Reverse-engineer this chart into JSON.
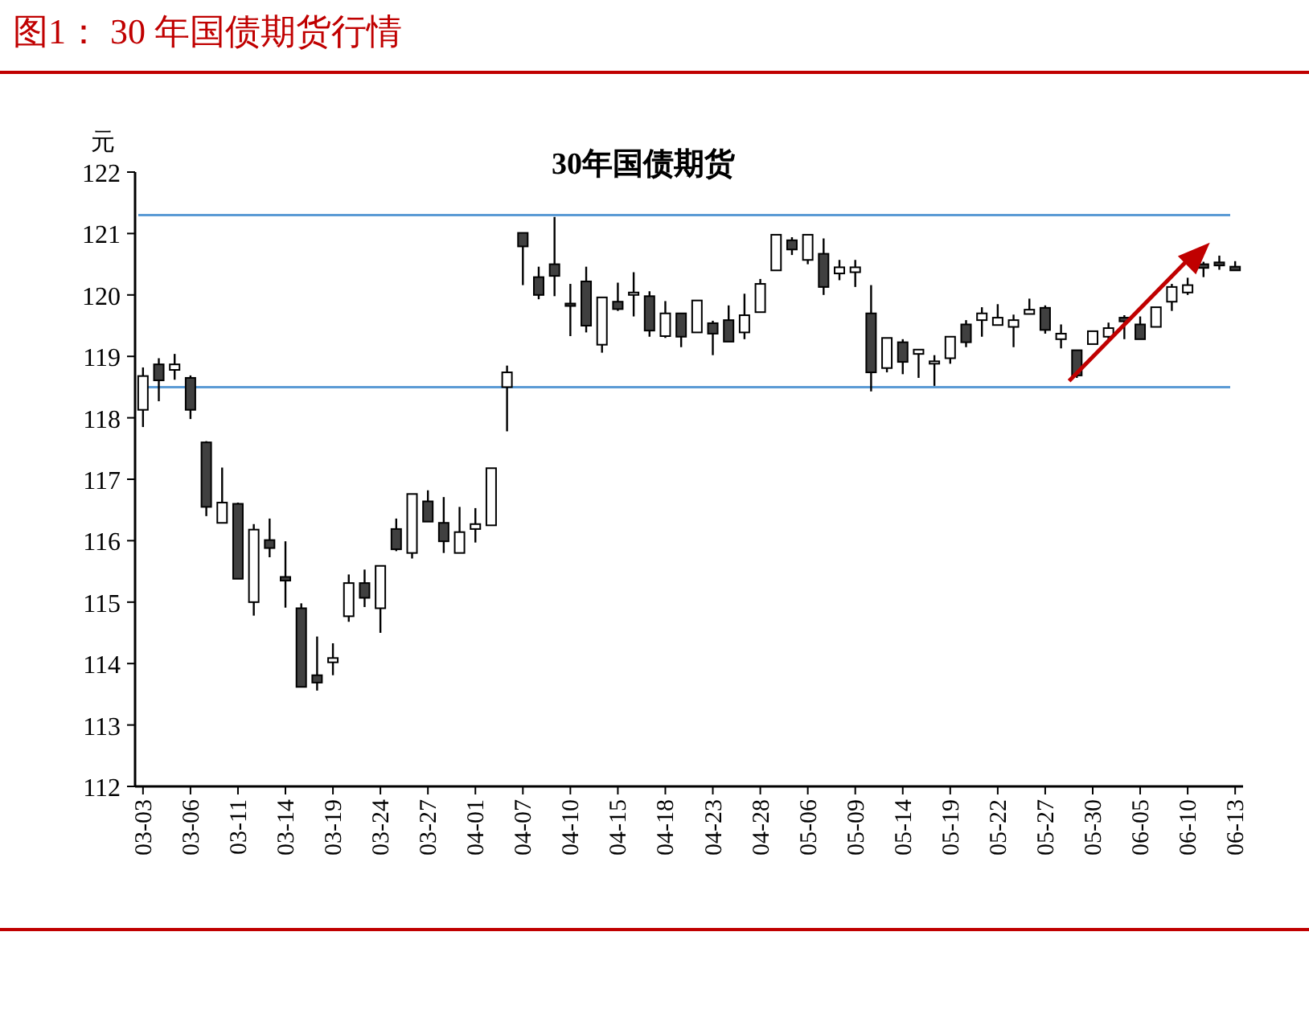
{
  "chart_data": {
    "type": "candlestick",
    "title": "图1：  30 年国债期货行情",
    "subtitle": "30年国债期货",
    "ylabel": "元",
    "categories": [
      "03-03",
      null,
      null,
      "03-06",
      null,
      null,
      "03-11",
      null,
      null,
      "03-14",
      null,
      null,
      "03-19",
      null,
      null,
      "03-24",
      null,
      null,
      "03-27",
      null,
      null,
      "04-01",
      null,
      null,
      "04-07",
      null,
      null,
      "04-10",
      null,
      null,
      "04-15",
      null,
      null,
      "04-18",
      null,
      null,
      "04-23",
      null,
      null,
      "04-28",
      null,
      null,
      "05-06",
      null,
      null,
      "05-09",
      null,
      null,
      "05-14",
      null,
      null,
      "05-19",
      null,
      null,
      "05-22",
      null,
      null,
      "05-27",
      null,
      null,
      "05-30",
      null,
      null,
      "06-05",
      null,
      null,
      "06-10",
      null,
      null,
      "06-13"
    ],
    "ohlc": [
      [
        118.13,
        118.82,
        117.85,
        118.68
      ],
      [
        118.87,
        118.97,
        118.27,
        118.61
      ],
      [
        118.78,
        119.04,
        118.62,
        118.87
      ],
      [
        118.65,
        118.69,
        117.98,
        118.13
      ],
      [
        117.6,
        117.62,
        116.4,
        116.55
      ],
      [
        116.29,
        117.19,
        116.29,
        116.62
      ],
      [
        116.6,
        116.62,
        115.38,
        115.38
      ],
      [
        115.0,
        116.27,
        114.78,
        116.18
      ],
      [
        116.01,
        116.36,
        115.73,
        115.88
      ],
      [
        115.41,
        115.99,
        114.91,
        115.35
      ],
      [
        114.9,
        114.98,
        113.62,
        113.62
      ],
      [
        113.81,
        114.44,
        113.56,
        113.69
      ],
      [
        114.02,
        114.33,
        113.81,
        114.09
      ],
      [
        114.77,
        115.45,
        114.68,
        115.31
      ],
      [
        115.31,
        115.53,
        114.92,
        115.07
      ],
      [
        114.9,
        115.59,
        114.5,
        115.59
      ],
      [
        116.19,
        116.36,
        115.83,
        115.86
      ],
      [
        115.8,
        116.76,
        115.71,
        116.76
      ],
      [
        116.64,
        116.82,
        116.31,
        116.31
      ],
      [
        116.29,
        116.71,
        115.8,
        115.99
      ],
      [
        115.8,
        116.55,
        115.8,
        116.14
      ],
      [
        116.19,
        116.53,
        115.97,
        116.27
      ],
      [
        116.25,
        117.18,
        116.25,
        117.18
      ],
      [
        118.5,
        118.85,
        117.78,
        118.74
      ],
      [
        121.01,
        121.01,
        120.16,
        120.79
      ],
      [
        120.29,
        120.46,
        119.93,
        120.0
      ],
      [
        120.5,
        121.27,
        119.98,
        120.31
      ],
      [
        119.86,
        120.18,
        119.33,
        119.84
      ],
      [
        120.22,
        120.46,
        119.39,
        119.5
      ],
      [
        119.19,
        119.96,
        119.06,
        119.96
      ],
      [
        119.89,
        120.2,
        119.74,
        119.77
      ],
      [
        120.02,
        120.37,
        119.65,
        120.04
      ],
      [
        119.98,
        120.06,
        119.32,
        119.42
      ],
      [
        119.33,
        119.9,
        119.3,
        119.7
      ],
      [
        119.7,
        119.7,
        119.15,
        119.32
      ],
      [
        119.39,
        119.91,
        119.39,
        119.91
      ],
      [
        119.54,
        119.58,
        119.02,
        119.37
      ],
      [
        119.59,
        119.83,
        119.24,
        119.24
      ],
      [
        119.39,
        120.02,
        119.28,
        119.67
      ],
      [
        119.72,
        120.26,
        119.72,
        120.18
      ],
      [
        120.4,
        120.98,
        120.4,
        120.98
      ],
      [
        120.89,
        120.94,
        120.65,
        120.74
      ],
      [
        120.57,
        120.98,
        120.5,
        120.98
      ],
      [
        120.67,
        120.92,
        120.0,
        120.13
      ],
      [
        120.35,
        120.57,
        120.24,
        120.45
      ],
      [
        120.37,
        120.57,
        120.13,
        120.45
      ],
      [
        119.7,
        120.16,
        118.43,
        118.74
      ],
      [
        118.81,
        119.3,
        118.74,
        119.3
      ],
      [
        119.23,
        119.28,
        118.71,
        118.91
      ],
      [
        119.04,
        119.11,
        118.65,
        119.11
      ],
      [
        118.9,
        119.02,
        118.52,
        118.92
      ],
      [
        118.97,
        119.32,
        118.88,
        119.32
      ],
      [
        119.52,
        119.59,
        119.15,
        119.23
      ],
      [
        119.59,
        119.8,
        119.32,
        119.7
      ],
      [
        119.51,
        119.85,
        119.51,
        119.63
      ],
      [
        119.48,
        119.68,
        119.15,
        119.59
      ],
      [
        119.69,
        119.94,
        119.69,
        119.76
      ],
      [
        119.79,
        119.83,
        119.37,
        119.43
      ],
      [
        119.28,
        119.52,
        119.13,
        119.37
      ],
      [
        119.1,
        119.1,
        118.65,
        118.69
      ],
      [
        119.2,
        119.41,
        119.2,
        119.41
      ],
      [
        119.32,
        119.55,
        119.26,
        119.46
      ],
      [
        119.63,
        119.67,
        119.28,
        119.57
      ],
      [
        119.52,
        119.65,
        119.28,
        119.28
      ],
      [
        119.48,
        119.8,
        119.48,
        119.8
      ],
      [
        119.89,
        120.18,
        119.74,
        120.13
      ],
      [
        120.04,
        120.28,
        120.0,
        120.16
      ],
      [
        120.5,
        120.54,
        120.29,
        120.44
      ],
      [
        120.53,
        120.64,
        120.41,
        120.48
      ],
      [
        120.46,
        120.55,
        120.4,
        120.4
      ]
    ],
    "ylim": [
      112,
      122
    ],
    "yticks": [
      112,
      113,
      114,
      115,
      116,
      117,
      118,
      119,
      120,
      121,
      122
    ],
    "ref_lines": [
      {
        "axis": "y",
        "value": 121.3,
        "color": "#5b9bd5"
      },
      {
        "axis": "y",
        "value": 118.5,
        "color": "#5b9bd5"
      }
    ]
  }
}
